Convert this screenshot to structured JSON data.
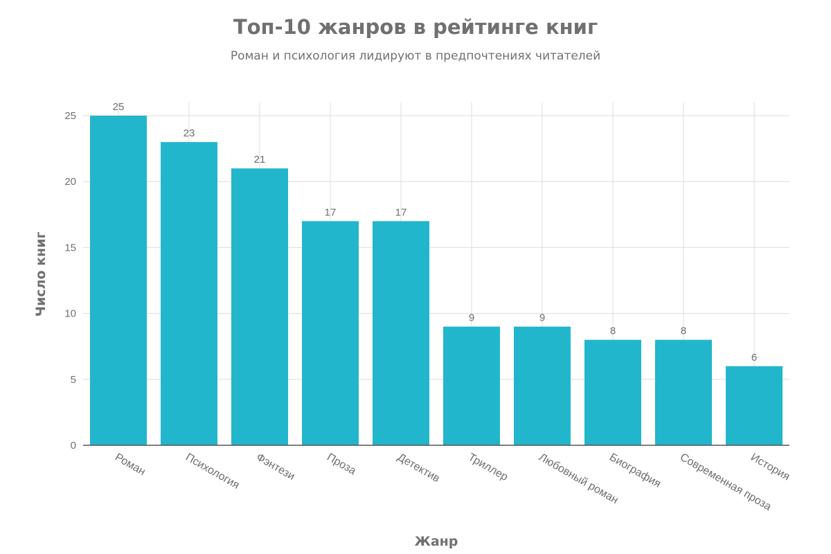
{
  "chart_data": {
    "type": "bar",
    "title": "Топ-10 жанров в рейтинге книг",
    "subtitle": "Роман и психология лидируют в предпочтениях читателей",
    "xlabel": "Жанр",
    "ylabel": "Число книг",
    "categories": [
      "Роман",
      "Психология",
      "Фэнтези",
      "Проза",
      "Детектив",
      "Триллер",
      "Любовный роман",
      "Биография",
      "Современная проза",
      "История"
    ],
    "values": [
      25,
      23,
      21,
      17,
      17,
      9,
      9,
      8,
      8,
      6
    ],
    "ylim": [
      0,
      26
    ],
    "yticks": [
      0,
      5,
      10,
      15,
      20,
      25
    ],
    "grid": true,
    "bar_color": "#22b6cc",
    "data_labels": true
  }
}
